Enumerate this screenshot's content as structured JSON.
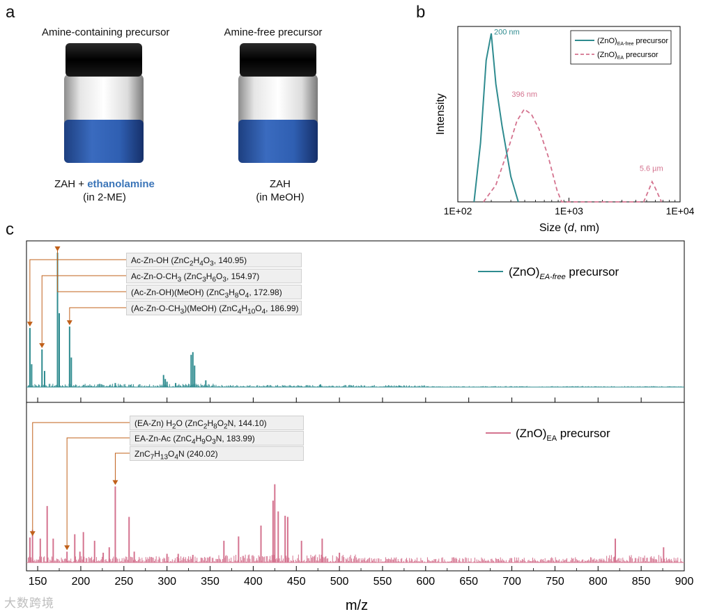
{
  "panel_a": {
    "letter": "a",
    "vial1": {
      "title": "Amine-containing precursor",
      "formula_prefix": "ZAH + ",
      "formula_highlight": "ethanolamine",
      "solvent": "(in 2-ME)"
    },
    "vial2": {
      "title": "Amine-free precursor",
      "formula": "ZAH",
      "solvent": "(in MeOH)"
    },
    "colors": {
      "cap": "#111111",
      "solution": "#2f5fb2",
      "highlight": "#3b75b8"
    }
  },
  "panel_b": {
    "letter": "b",
    "ylabel": "Intensity",
    "xlabel_prefix": "Size (",
    "xlabel_var": "d",
    "xlabel_suffix": ", nm)",
    "ticks": [
      "1E+02",
      "1E+03",
      "1E+04"
    ],
    "legend": [
      {
        "base": "(ZnO)",
        "sub": "EA-free",
        "suffix": " precursor",
        "color": "#2e8b8f",
        "dash": false
      },
      {
        "base": "(ZnO)",
        "sub": "EA",
        "suffix": " precursor",
        "color": "#d4738f",
        "dash": true
      }
    ],
    "annotations": [
      "200 nm",
      "396 nm",
      "5.6 µm"
    ]
  },
  "chart_data": [
    {
      "type": "line",
      "title": "",
      "xlabel": "Size (d, nm)",
      "ylabel": "Intensity",
      "xscale": "log",
      "xlim": [
        100,
        10000
      ],
      "ylim": [
        0,
        1.0
      ],
      "series": [
        {
          "name": "(ZnO)EA-free precursor",
          "x": [
            140,
            160,
            180,
            200,
            220,
            250,
            300,
            350
          ],
          "y": [
            0,
            0.35,
            0.84,
            1.0,
            0.7,
            0.45,
            0.15,
            0
          ]
        },
        {
          "name": "(ZnO)EA precursor",
          "x": [
            170,
            220,
            280,
            340,
            396,
            460,
            540,
            650,
            780,
            860,
            4700,
            5300,
            5600,
            6000,
            6800
          ],
          "y": [
            0,
            0.1,
            0.3,
            0.48,
            0.55,
            0.52,
            0.43,
            0.27,
            0.07,
            0,
            0,
            0.08,
            0.12,
            0.08,
            0
          ]
        }
      ],
      "annotations": [
        {
          "text": "200 nm",
          "x": 200
        },
        {
          "text": "396 nm",
          "x": 396
        },
        {
          "text": "5.6 µm",
          "x": 5600
        }
      ]
    },
    {
      "type": "bar",
      "title": "(ZnO)EA-free precursor",
      "xlabel": "m/z",
      "ylabel": "",
      "xlim": [
        137,
        900
      ],
      "ylim": [
        0,
        1.0
      ],
      "x": [
        141,
        143,
        155,
        158,
        173,
        175,
        187,
        189,
        240,
        296,
        298,
        300,
        310,
        328,
        330,
        332,
        345,
        478,
        570
      ],
      "values": [
        0.44,
        0.17,
        0.28,
        0.12,
        1.0,
        0.55,
        0.45,
        0.22,
        0.03,
        0.09,
        0.06,
        0.04,
        0.03,
        0.24,
        0.26,
        0.16,
        0.05,
        0.02,
        0.01
      ],
      "annotations": [
        {
          "text": "Ac-Zn-OH (ZnC2H4O3, 140.95)",
          "x": 140.95
        },
        {
          "text": "Ac-Zn-O-CH3 (ZnC3H6O3, 154.97)",
          "x": 154.97
        },
        {
          "text": "(Ac-Zn-OH)(MeOH) (ZnC3H8O4, 172.98)",
          "x": 172.98
        },
        {
          "text": "(Ac-Zn-O-CH3)(MeOH) (ZnC4H10O4, 186.99)",
          "x": 186.99
        }
      ]
    },
    {
      "type": "bar",
      "title": "(ZnO)EA precursor",
      "xlabel": "m/z",
      "ylabel": "",
      "xlim": [
        137,
        900
      ],
      "ylim": [
        0,
        1.0
      ],
      "x": [
        141,
        144,
        153,
        161,
        168,
        184,
        193,
        199,
        203,
        216,
        226,
        233,
        240,
        256,
        262,
        300,
        313,
        330,
        366,
        383,
        409,
        423,
        425,
        429,
        437,
        440,
        456,
        480,
        500,
        820,
        876
      ],
      "values": [
        0.23,
        0.3,
        0.22,
        0.52,
        0.22,
        0.1,
        0.26,
        0.1,
        0.28,
        0.2,
        0.09,
        0.14,
        0.7,
        0.42,
        0.1,
        0.08,
        0.08,
        0.07,
        0.2,
        0.24,
        0.34,
        0.57,
        0.72,
        0.47,
        0.43,
        0.42,
        0.2,
        0.22,
        0.09,
        0.22,
        0.14
      ],
      "annotations": [
        {
          "text": "(EA-Zn) H2O (ZnC2H8O2N, 144.10)",
          "x": 144.1
        },
        {
          "text": "EA-Zn-Ac (ZnC4H9O3N, 183.99)",
          "x": 183.99
        },
        {
          "text": "ZnC7H13O4N (240.02)",
          "x": 240.02
        }
      ]
    }
  ],
  "panel_c": {
    "letter": "c",
    "xlabel": "m/z",
    "xticks": [
      "150",
      "200",
      "250",
      "300",
      "350",
      "400",
      "450",
      "500",
      "550",
      "600",
      "650",
      "700",
      "750",
      "800",
      "850",
      "900"
    ],
    "top_legend": {
      "base": "(ZnO)",
      "sub": "EA-free",
      "suffix": " precursor",
      "color": "#2e8b8f"
    },
    "bottom_legend": {
      "base": "(ZnO)",
      "sub": "EA",
      "suffix": " precursor",
      "color": "#d4738f"
    },
    "arrow_color": "#c0601a",
    "top_labels": [
      {
        "pre": "Ac-Zn-OH (ZnC",
        "s1": "2",
        "m1": "H",
        "s2": "4",
        "m2": "O",
        "s3": "3",
        "post": ", 140.95)"
      },
      {
        "pre": "Ac-Zn-O-CH",
        "s0": "3",
        "pre2": " (ZnC",
        "s1": "3",
        "m1": "H",
        "s2": "6",
        "m2": "O",
        "s3": "3",
        "post": ", 154.97)"
      },
      {
        "pre": "(Ac-Zn-OH)(MeOH) (ZnC",
        "s1": "3",
        "m1": "H",
        "s2": "8",
        "m2": "O",
        "s3": "4",
        "post": ", 172.98)"
      },
      {
        "pre": "(Ac-Zn-O-CH",
        "s0": "3",
        "pre2": ")(MeOH) (ZnC",
        "s1": "4",
        "m1": "H",
        "s2": "10",
        "m2": "O",
        "s3": "4",
        "post": ", 186.99)"
      }
    ],
    "bottom_labels": [
      {
        "pre": "(EA-Zn) H",
        "s0": "2",
        "pre2": "O (ZnC",
        "s1": "2",
        "m1": "H",
        "s2": "8",
        "m2": "O",
        "s3": "2",
        "post": "N, 144.10)"
      },
      {
        "pre": "EA-Zn-Ac (ZnC",
        "s1": "4",
        "m1": "H",
        "s2": "9",
        "m2": "O",
        "s3": "3",
        "post": "N, 183.99)"
      },
      {
        "pre": "ZnC",
        "s1": "7",
        "m1": "H",
        "s2": "13",
        "m2": "O",
        "s3": "4",
        "post": "N (240.02)"
      }
    ]
  },
  "watermark": "大数跨境"
}
